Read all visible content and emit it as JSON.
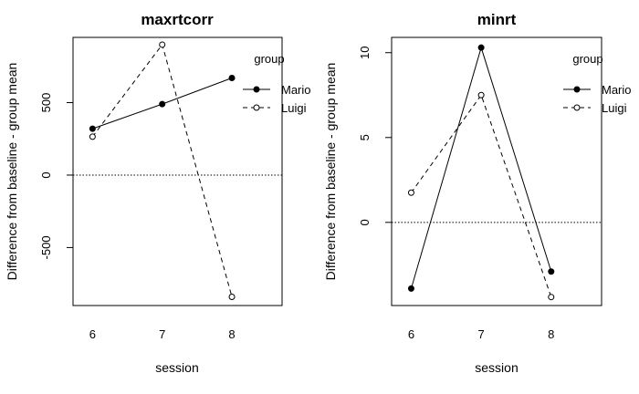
{
  "chart_data": [
    {
      "type": "line",
      "title": "maxrtcorr",
      "xlabel": "session",
      "ylabel": "Difference from baseline - group mean",
      "x": [
        6,
        7,
        8
      ],
      "xlim": [
        5.72,
        8.72
      ],
      "ylim": [
        -900,
        950
      ],
      "yticks": [
        -500,
        0,
        500
      ],
      "xticks": [
        6,
        7,
        8
      ],
      "reference_line": 0,
      "legend_title": "group",
      "legend_position": "top-right",
      "series": [
        {
          "name": "Mario",
          "values": [
            320,
            490,
            670
          ],
          "linestyle": "solid",
          "marker": "filled-circle"
        },
        {
          "name": "Luigi",
          "values": [
            265,
            900,
            -840
          ],
          "linestyle": "dashed",
          "marker": "open-circle"
        }
      ]
    },
    {
      "type": "line",
      "title": "minrt",
      "xlabel": "session",
      "ylabel": "Difference from baseline - group mean",
      "x": [
        6,
        7,
        8
      ],
      "xlim": [
        5.72,
        8.72
      ],
      "ylim": [
        -4.9,
        10.9
      ],
      "yticks": [
        0,
        5,
        10
      ],
      "xticks": [
        6,
        7,
        8
      ],
      "reference_line": 0,
      "legend_title": "group",
      "legend_position": "top-right",
      "series": [
        {
          "name": "Mario",
          "values": [
            -3.9,
            10.3,
            -2.9
          ],
          "linestyle": "solid",
          "marker": "filled-circle"
        },
        {
          "name": "Luigi",
          "values": [
            1.75,
            7.5,
            -4.4
          ],
          "linestyle": "dashed",
          "marker": "open-circle"
        }
      ]
    }
  ]
}
